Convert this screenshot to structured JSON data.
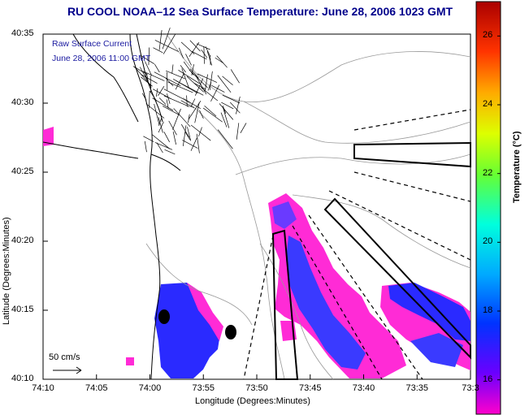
{
  "title": "RU COOL   NOAA–12  Sea Surface Temperature:  June 28, 2006 1023 GMT",
  "overlay": {
    "line1": "Raw Surface Current",
    "line2": "June 28, 2006 11:00 GMT"
  },
  "scale_label": "50 cm/s",
  "axes": {
    "xlabel": "Longitude (Degrees:Minutes)",
    "ylabel": "Latitude (Degrees:Minutes)",
    "xticks": [
      "74:10",
      "74:05",
      "74:00",
      "73:55",
      "73:50",
      "73:45",
      "73:40",
      "73:35",
      "73:3"
    ],
    "yticks": [
      "40:35",
      "40:30",
      "40:25",
      "40:20",
      "40:15",
      "40:10"
    ]
  },
  "colorbar": {
    "title": "Temperature (°C)",
    "ticks": [
      "26",
      "24",
      "22",
      "20",
      "18",
      "16"
    ],
    "range": [
      15,
      27
    ]
  },
  "colors": {
    "title": "#00008b",
    "warm_water": "#ff33ff",
    "cool_water": "#3333ff",
    "land": "#ffffff"
  },
  "map_features": {
    "coastline": "black line",
    "bathymetry": "gray contours",
    "current_vectors": "black arrows near 40:30N",
    "stations": "two black dots",
    "boxes": "three outlined rectangles and dashed rays"
  }
}
